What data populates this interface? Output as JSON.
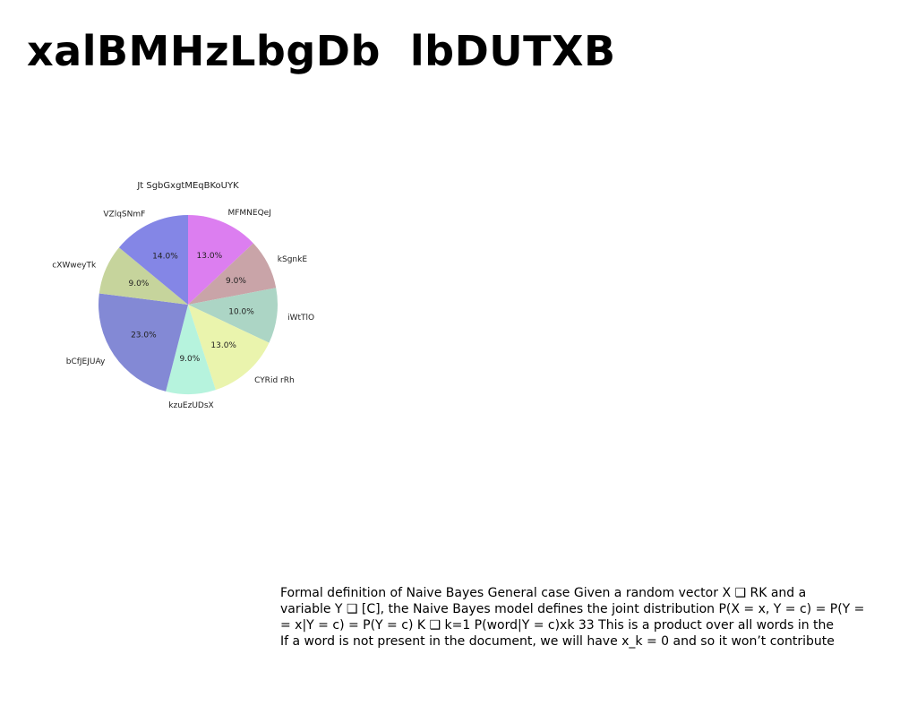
{
  "title": "xalBMHzLbgDb  lbDUTXB",
  "body_text_lines": [
    "Formal definition of Naive Bayes General case Given a random vector X ❑ RK and a",
    "variable Y ❑ [C], the Naive Bayes model defines the joint distribution P(X = x, Y = c) = P(Y =",
    "= x|Y = c) = P(Y = c) K ❑ k=1 P(word|Y = c)xk 33 This is a product over all words in the",
    "If a word is not present in the document, we will have x_k = 0 and so it won’t contribute"
  ],
  "chart_data": {
    "type": "pie",
    "title": "Jt SgbGxgtMEqBKoUYK",
    "start_angle_deg": 90,
    "direction": "clockwise",
    "slices": [
      {
        "label": "MFMNEQeJ",
        "value": 13.0,
        "pct_label": "13.0%",
        "color": "#dc7ef0"
      },
      {
        "label": "kSgnkE",
        "value": 9.0,
        "pct_label": "9.0%",
        "color": "#c9a4a8"
      },
      {
        "label": "iWtTlO",
        "value": 10.0,
        "pct_label": "10.0%",
        "color": "#acd5c5"
      },
      {
        "label": "CYRid rRh",
        "value": 13.0,
        "pct_label": "13.0%",
        "color": "#eaf4ad"
      },
      {
        "label": "kzuEzUDsX",
        "value": 9.0,
        "pct_label": "9.0%",
        "color": "#b6f3dd"
      },
      {
        "label": "bCfJEJUAy",
        "value": 23.0,
        "pct_label": "23.0%",
        "color": "#8389d5"
      },
      {
        "label": "cXWweyTk",
        "value": 9.0,
        "pct_label": "9.0%",
        "color": "#c6d49c"
      },
      {
        "label": "VZlqSNmF",
        "value": 14.0,
        "pct_label": "14.0%",
        "color": "#8486e6"
      }
    ]
  }
}
